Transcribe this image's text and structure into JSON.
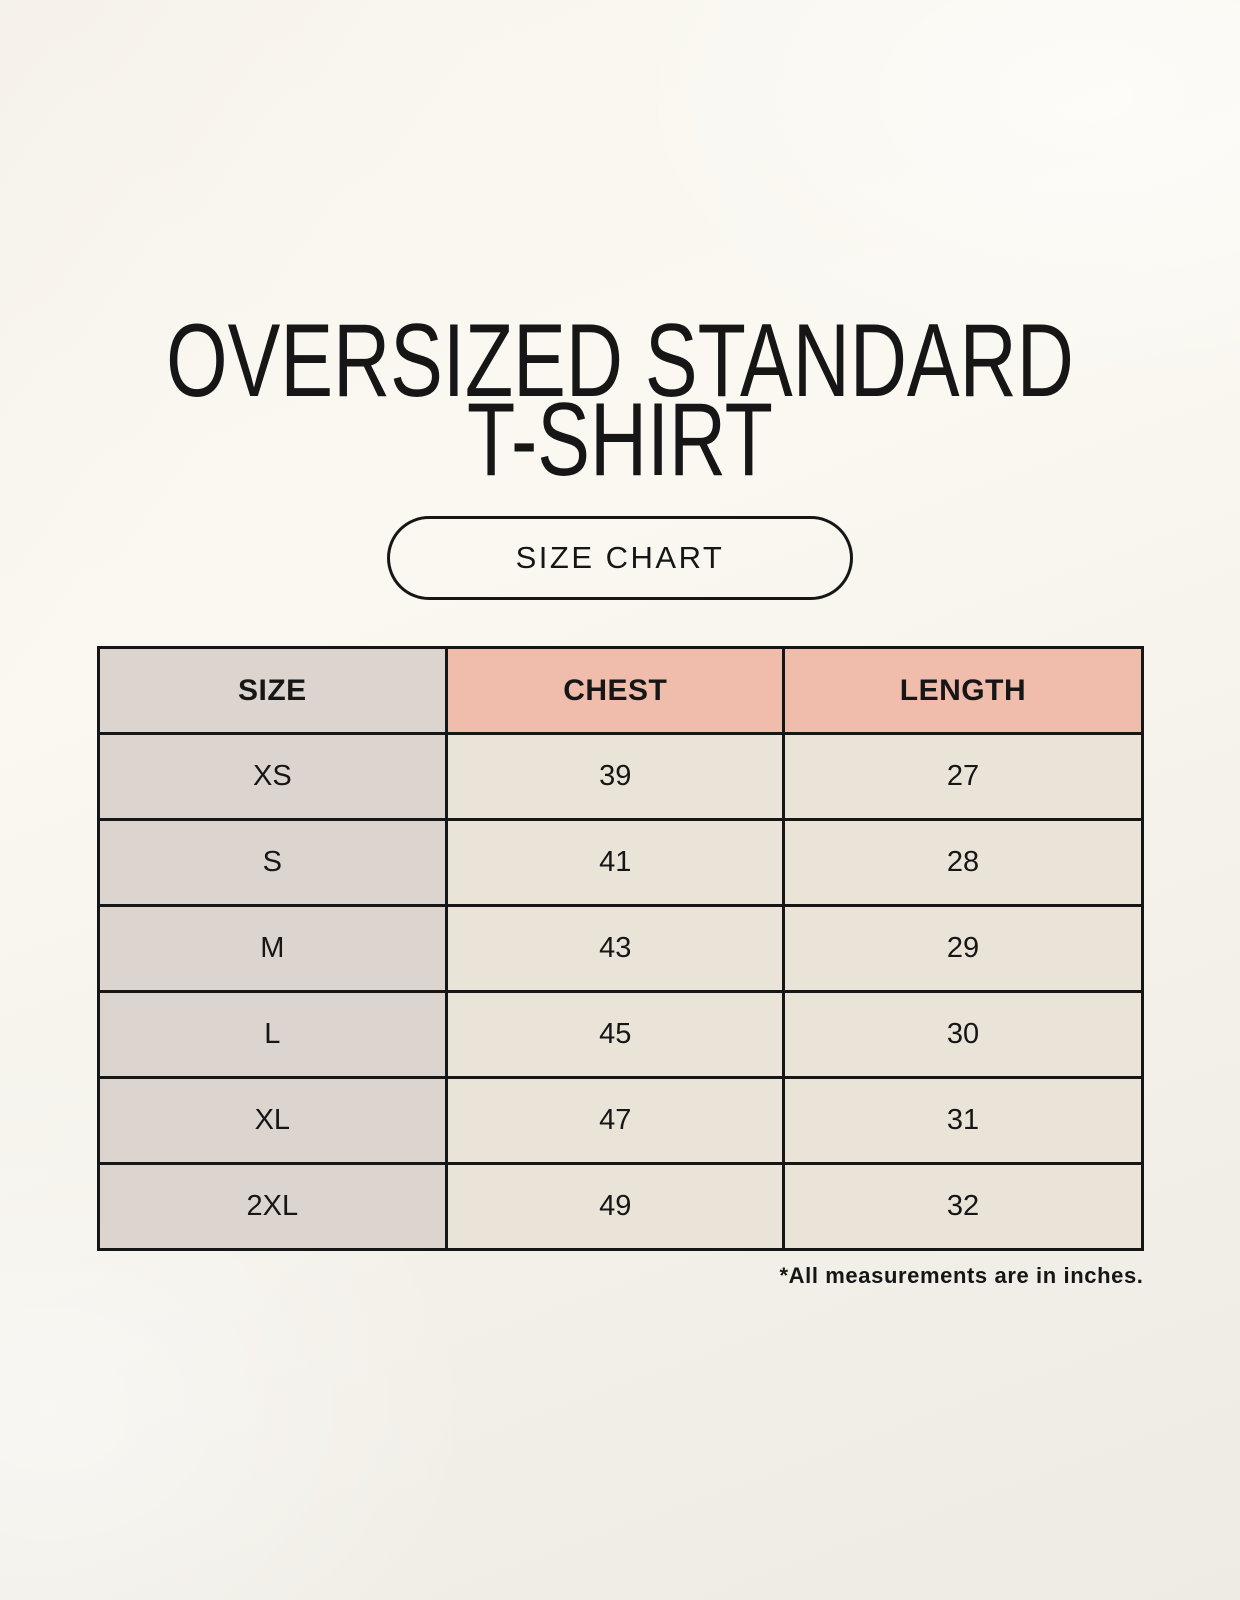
{
  "page": {
    "title_line1": "OVERSIZED STANDARD",
    "title_line2": "T-SHIRT",
    "size_chart_button_label": "SIZE CHART",
    "footnote": "*All measurements are in inches."
  },
  "colors": {
    "page_background": "#F8F5EE",
    "size_column_gray": "#DCD5CF",
    "header_pink": "#F0BCAB",
    "data_cell_cream": "#EAE4D8",
    "table_border": "#161616",
    "text": "#161616"
  },
  "chart_data": {
    "type": "table",
    "title": "OVERSIZED STANDARD T-SHIRT",
    "columns": [
      "SIZE",
      "CHEST",
      "LENGTH"
    ],
    "rows": [
      {
        "size": "XS",
        "chest": "39",
        "length": "27"
      },
      {
        "size": "S",
        "chest": "41",
        "length": "28"
      },
      {
        "size": "M",
        "chest": "43",
        "length": "29"
      },
      {
        "size": "L",
        "chest": "45",
        "length": "30"
      },
      {
        "size": "XL",
        "chest": "47",
        "length": "31"
      },
      {
        "size": "2XL",
        "chest": "49",
        "length": "32"
      }
    ],
    "units_note": "*All measurements are in inches."
  }
}
